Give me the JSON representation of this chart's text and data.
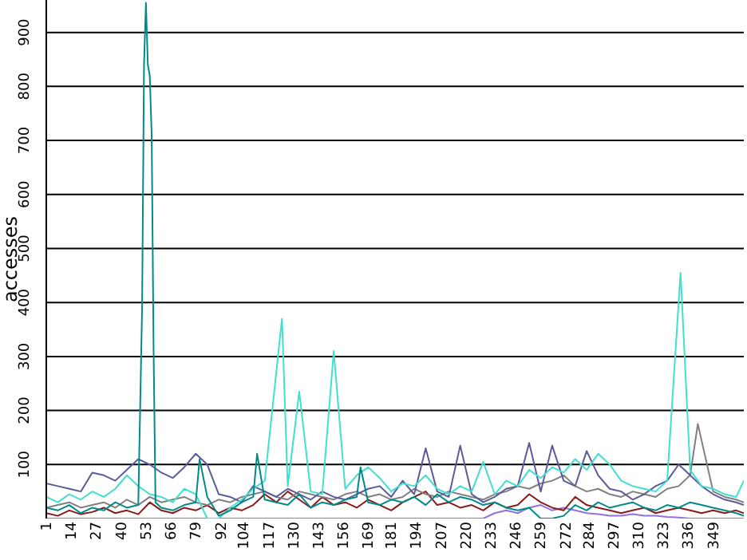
{
  "chart_data": {
    "type": "line",
    "ylabel": "accesses",
    "xlim": [
      1,
      365
    ],
    "xticks": [
      1,
      14,
      27,
      40,
      53,
      66,
      79,
      92,
      104,
      117,
      130,
      143,
      156,
      169,
      181,
      194,
      207,
      220,
      233,
      246,
      259,
      272,
      284,
      297,
      310,
      323,
      336,
      349
    ],
    "ylim": [
      0,
      960
    ],
    "yticks": [
      100,
      200,
      300,
      400,
      500,
      600,
      700,
      800,
      900
    ],
    "grid": "y",
    "marker": "none",
    "x": [
      1,
      7,
      13,
      19,
      25,
      31,
      37,
      43,
      49,
      55,
      61,
      67,
      73,
      79,
      85,
      91,
      97,
      103,
      109,
      115,
      121,
      127,
      133,
      139,
      145,
      151,
      157,
      163,
      169,
      175,
      181,
      187,
      193,
      199,
      205,
      211,
      217,
      223,
      229,
      235,
      241,
      247,
      253,
      259,
      265,
      271,
      277,
      283,
      289,
      295,
      301,
      307,
      313,
      319,
      325,
      331,
      337,
      343,
      349,
      355,
      361,
      365
    ],
    "series": [
      {
        "color": "#9370db",
        "values": [
          0,
          0,
          0,
          0,
          0,
          0,
          0,
          0,
          0,
          0,
          0,
          0,
          0,
          0,
          0,
          0,
          0,
          0,
          0,
          0,
          0,
          0,
          0,
          0,
          0,
          0,
          0,
          0,
          0,
          0,
          0,
          0,
          0,
          0,
          0,
          0,
          0,
          0,
          0,
          10,
          15,
          10,
          20,
          25,
          15,
          20,
          15,
          10,
          8,
          5,
          5,
          8,
          5,
          5,
          3,
          2,
          0,
          0,
          0,
          0,
          0,
          0
        ]
      },
      {
        "color": "#8b1a1a",
        "values": [
          10,
          5,
          15,
          8,
          12,
          20,
          10,
          15,
          8,
          30,
          15,
          10,
          20,
          15,
          25,
          10,
          20,
          15,
          25,
          45,
          30,
          50,
          35,
          20,
          40,
          25,
          30,
          20,
          35,
          25,
          15,
          30,
          40,
          50,
          25,
          30,
          20,
          25,
          15,
          30,
          20,
          25,
          45,
          30,
          20,
          15,
          40,
          25,
          20,
          15,
          10,
          15,
          20,
          10,
          15,
          20,
          15,
          10,
          15,
          10,
          15,
          10
        ]
      },
      {
        "color": "#808080",
        "x": [
          1,
          7,
          13,
          19,
          25,
          31,
          37,
          43,
          49,
          55,
          61,
          67,
          73,
          79,
          85,
          91,
          97,
          103,
          109,
          115,
          121,
          127,
          133,
          139,
          145,
          151,
          157,
          163,
          169,
          175,
          181,
          187,
          193,
          199,
          205,
          211,
          217,
          223,
          229,
          235,
          241,
          247,
          253,
          259,
          265,
          271,
          277,
          283,
          289,
          295,
          301,
          307,
          313,
          319,
          325,
          331,
          337,
          341,
          349,
          355,
          361,
          365
        ],
        "values": [
          20,
          25,
          30,
          20,
          25,
          30,
          20,
          35,
          25,
          40,
          30,
          35,
          40,
          30,
          25,
          35,
          30,
          40,
          45,
          50,
          40,
          35,
          50,
          45,
          40,
          35,
          45,
          50,
          40,
          45,
          35,
          40,
          55,
          45,
          40,
          50,
          45,
          40,
          35,
          45,
          50,
          60,
          55,
          65,
          70,
          80,
          60,
          50,
          55,
          45,
          40,
          50,
          45,
          40,
          55,
          60,
          80,
          175,
          50,
          40,
          35,
          30
        ]
      },
      {
        "color": "#5b5b9b",
        "values": [
          65,
          60,
          55,
          50,
          85,
          80,
          70,
          90,
          110,
          100,
          85,
          75,
          95,
          120,
          100,
          45,
          40,
          30,
          60,
          50,
          40,
          55,
          45,
          35,
          50,
          40,
          35,
          45,
          55,
          60,
          40,
          70,
          45,
          130,
          50,
          40,
          135,
          45,
          30,
          40,
          55,
          60,
          140,
          50,
          135,
          70,
          60,
          125,
          80,
          55,
          50,
          35,
          45,
          60,
          70,
          100,
          80,
          60,
          45,
          35,
          30,
          25
        ]
      },
      {
        "color": "#40e0d0",
        "x": [
          1,
          7,
          13,
          19,
          25,
          31,
          37,
          43,
          49,
          55,
          61,
          67,
          73,
          79,
          85,
          91,
          97,
          103,
          109,
          115,
          124,
          127,
          133,
          139,
          145,
          151,
          157,
          163,
          169,
          175,
          181,
          187,
          193,
          199,
          205,
          211,
          217,
          223,
          229,
          235,
          241,
          247,
          253,
          259,
          265,
          271,
          277,
          283,
          289,
          295,
          301,
          307,
          313,
          319,
          325,
          332,
          337,
          343,
          349,
          355,
          361,
          365
        ],
        "values": [
          40,
          30,
          45,
          35,
          50,
          40,
          55,
          80,
          60,
          45,
          40,
          30,
          55,
          45,
          0,
          0,
          20,
          35,
          55,
          70,
          370,
          60,
          235,
          50,
          45,
          310,
          55,
          80,
          95,
          75,
          50,
          65,
          60,
          80,
          55,
          45,
          60,
          50,
          105,
          45,
          70,
          60,
          90,
          75,
          95,
          85,
          110,
          90,
          120,
          100,
          70,
          60,
          55,
          50,
          70,
          455,
          90,
          60,
          55,
          45,
          40,
          70
        ]
      },
      {
        "color": "#008b8b",
        "x": [
          1,
          7,
          13,
          19,
          25,
          31,
          37,
          43,
          49,
          51,
          52,
          53,
          54,
          55,
          56,
          57,
          58,
          61,
          67,
          73,
          79,
          81,
          85,
          91,
          97,
          103,
          109,
          111,
          115,
          121,
          127,
          133,
          139,
          145,
          151,
          157,
          163,
          165,
          169,
          175,
          181,
          187,
          193,
          199,
          205,
          211,
          217,
          223,
          229,
          235,
          241,
          247,
          253,
          259,
          265,
          271,
          277,
          283,
          289,
          295,
          301,
          307,
          313,
          319,
          325,
          331,
          337,
          343,
          349,
          355,
          361,
          365
        ],
        "values": [
          20,
          15,
          25,
          10,
          20,
          15,
          30,
          20,
          25,
          390,
          840,
          955,
          840,
          820,
          710,
          310,
          30,
          20,
          15,
          25,
          30,
          110,
          40,
          5,
          15,
          30,
          40,
          120,
          35,
          30,
          25,
          45,
          20,
          30,
          25,
          35,
          40,
          95,
          30,
          25,
          35,
          30,
          40,
          25,
          45,
          30,
          40,
          35,
          25,
          30,
          20,
          15,
          20,
          0,
          0,
          5,
          25,
          15,
          30,
          20,
          25,
          30,
          20,
          15,
          25,
          20,
          30,
          25,
          20,
          15,
          10,
          5
        ]
      }
    ]
  }
}
